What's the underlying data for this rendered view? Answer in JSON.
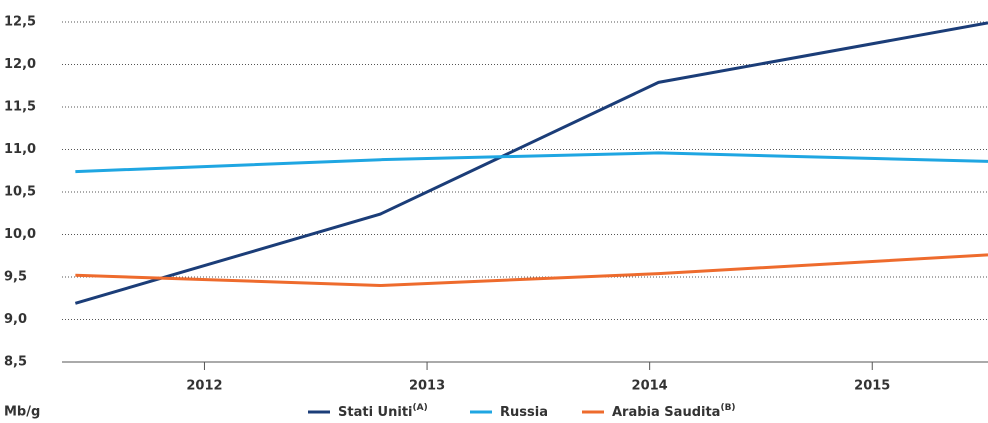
{
  "chart_data": {
    "type": "line",
    "y_label": "Mb/g",
    "series": [
      {
        "name": "Stati Uniti",
        "note": "(A)",
        "color": "#1b3d78",
        "x": [
          2011.42,
          2012.79,
          2014.04,
          2015.52
        ],
        "values": [
          9.19,
          10.24,
          11.79,
          12.49
        ]
      },
      {
        "name": "Russia",
        "color": "#1fa6e2",
        "x": [
          2011.42,
          2012.79,
          2014.04,
          2015.52
        ],
        "values": [
          10.74,
          10.88,
          10.96,
          10.86
        ]
      },
      {
        "name": "Arabia Saudita",
        "note": "(B)",
        "color": "#ee6b2d",
        "x": [
          2011.42,
          2012.79,
          2014.04,
          2015.52
        ],
        "values": [
          9.52,
          9.4,
          9.54,
          9.76
        ]
      }
    ],
    "xlim": [
      2011.36,
      2015.52
    ],
    "xticks": [
      2012,
      2013,
      2014,
      2015
    ],
    "ylim": [
      8.5,
      12.5
    ],
    "yticks": [
      {
        "value": 8.5,
        "label": "8,5"
      },
      {
        "value": 9,
        "label": "9,0"
      },
      {
        "value": 9.5,
        "label": "9,5"
      },
      {
        "value": 10,
        "label": "10,0"
      },
      {
        "value": 10.5,
        "label": "10,5"
      },
      {
        "value": 11,
        "label": "11,0"
      },
      {
        "value": 11.5,
        "label": "11,5"
      },
      {
        "value": 12,
        "label": "12,0"
      },
      {
        "value": 12.5,
        "label": "12,5"
      }
    ],
    "grid": true
  }
}
